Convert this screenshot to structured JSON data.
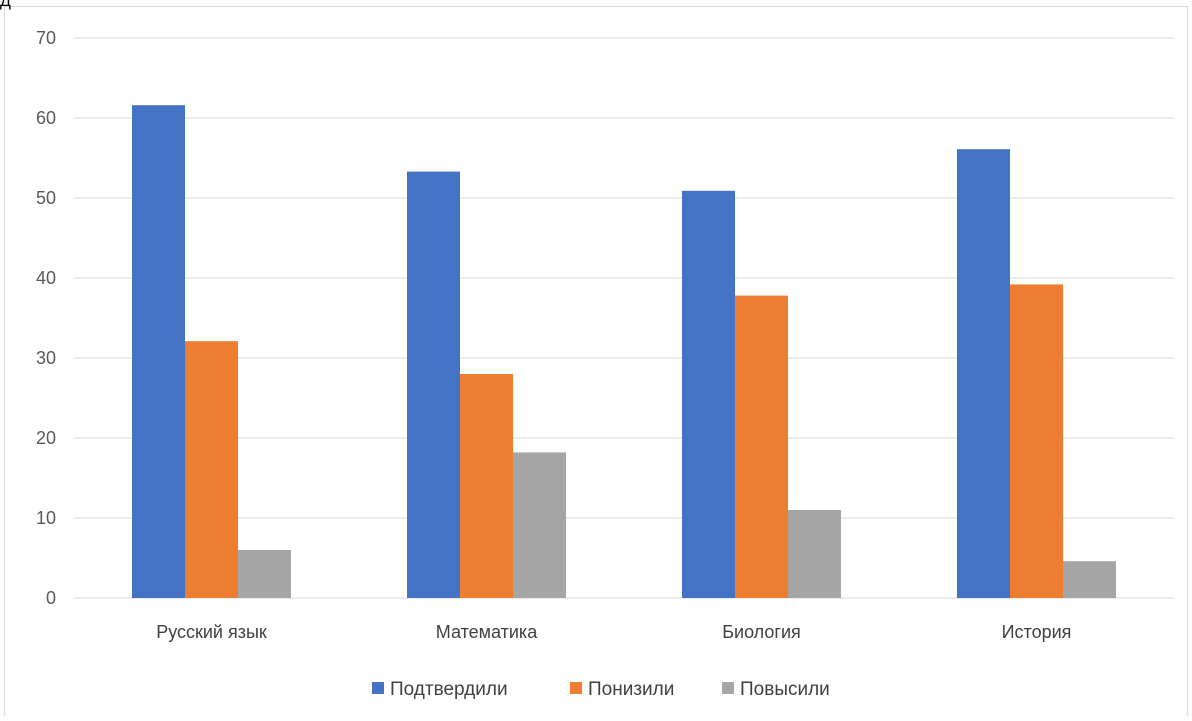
{
  "corner_glyph": "Д",
  "chart_data": {
    "type": "bar",
    "title": "",
    "xlabel": "",
    "ylabel": "",
    "categories": [
      "Русский язык",
      "Математика",
      "Биология",
      "История"
    ],
    "series": [
      {
        "name": "Подтвердили",
        "color": "#4472c4",
        "values": [
          61.6,
          53.3,
          50.9,
          56.1
        ]
      },
      {
        "name": "Понизили",
        "color": "#ed7d31",
        "values": [
          32.1,
          28.0,
          37.8,
          39.2
        ]
      },
      {
        "name": "Повысили",
        "color": "#a5a5a5",
        "values": [
          6.0,
          18.2,
          11.0,
          4.6
        ]
      }
    ],
    "ylim": [
      0,
      70
    ],
    "yticks": [
      0,
      10,
      20,
      30,
      40,
      50,
      60,
      70
    ],
    "grid": true,
    "legend_position": "bottom"
  }
}
